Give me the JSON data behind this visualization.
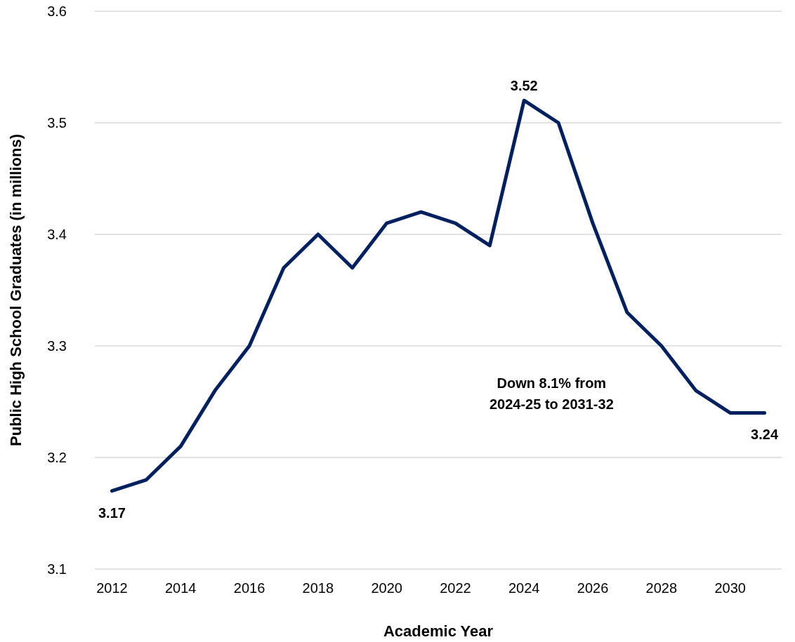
{
  "chart_data": {
    "type": "line",
    "xlabel": "Academic Year",
    "ylabel": "Public High School Graduates (in millions)",
    "x": [
      2012,
      2013,
      2014,
      2015,
      2016,
      2017,
      2018,
      2019,
      2020,
      2021,
      2022,
      2023,
      2024,
      2025,
      2026,
      2027,
      2028,
      2029,
      2030,
      2031
    ],
    "series": [
      {
        "color": "#002060",
        "values": [
          3.17,
          3.18,
          3.21,
          3.26,
          3.3,
          3.37,
          3.4,
          3.37,
          3.41,
          3.42,
          3.41,
          3.39,
          3.52,
          3.5,
          3.41,
          3.33,
          3.3,
          3.26,
          3.24,
          3.24
        ]
      }
    ],
    "xlim": [
      2011.5,
      2031.5
    ],
    "xticks": [
      2012,
      2014,
      2016,
      2018,
      2020,
      2022,
      2024,
      2026,
      2028,
      2030
    ],
    "ylim": [
      3.1,
      3.6
    ],
    "yticks": [
      3.1,
      3.2,
      3.3,
      3.4,
      3.5,
      3.6
    ],
    "grid": "y",
    "marker": "none",
    "line_style": "solid",
    "annotations": [
      {
        "text": "3.17",
        "x": 2012,
        "y": 3.17
      },
      {
        "text": "3.52",
        "x": 2024,
        "y": 3.52
      },
      {
        "text": "3.24",
        "x": 2031,
        "y": 3.24
      },
      "Down 8.1% from\n2024-25 to 2031-32"
    ]
  }
}
